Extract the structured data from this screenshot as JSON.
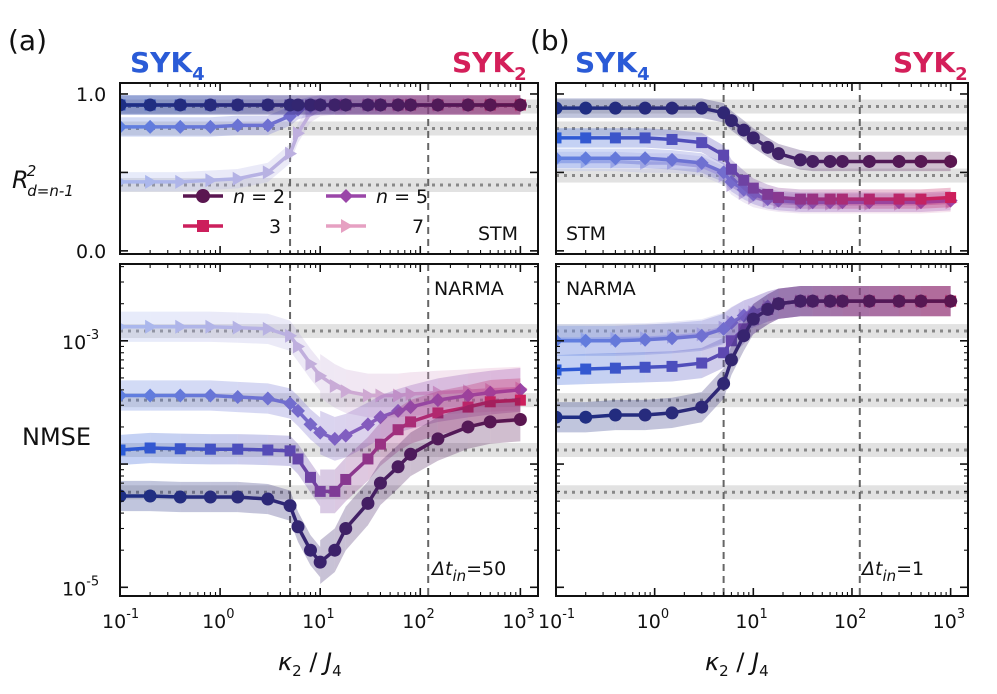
{
  "figure": {
    "panels": [
      {
        "tag": "(a)",
        "left_label": "SYK",
        "left_sub": "4",
        "right_label": "SYK",
        "right_sub": "2",
        "top_annot": "STM",
        "bottom_annot": "NARMA",
        "dt_label_pre": "Δt",
        "dt_label_sub": "in",
        "dt_label_post": "=50"
      },
      {
        "tag": "(b)",
        "left_label": "SYK",
        "left_sub": "4",
        "right_label": "SYK",
        "right_sub": "2",
        "top_annot": "STM",
        "bottom_annot": "NARMA",
        "dt_label_pre": "Δt",
        "dt_label_sub": "in",
        "dt_label_post": "=1"
      }
    ],
    "colors": {
      "syk4": "#2a5bd7",
      "syk2": "#d41f5a",
      "frame": "#111111",
      "ref_band": "#e2e2e2",
      "dotted": "#888888",
      "dashed": "#666666"
    },
    "top_ylabel": {
      "main": "R",
      "sup": "2",
      "sub": "d=n-1"
    },
    "bottom_ylabel": "NMSE",
    "xlabel": {
      "kappa": "κ",
      "kappa_sub": "2",
      "sep": " / ",
      "j": "J",
      "j_sub": "4"
    },
    "x_ticks": [
      {
        "base": "10",
        "exp": "-1"
      },
      {
        "base": "10",
        "exp": "0"
      },
      {
        "base": "10",
        "exp": "1"
      },
      {
        "base": "10",
        "exp": "2"
      },
      {
        "base": "10",
        "exp": "3"
      }
    ],
    "top_yticks": [
      "0.0",
      "0.5",
      "1.0"
    ],
    "bottom_yticks": [
      {
        "base": "10",
        "exp": "-3"
      },
      {
        "base": "10",
        "exp": "-5"
      }
    ],
    "legend": {
      "col1": [
        {
          "label": "n = 2"
        },
        {
          "label": "3"
        }
      ],
      "col2": [
        {
          "label": "n = 5"
        },
        {
          "label": "7"
        }
      ]
    }
  },
  "chart_data": [
    {
      "type": "line",
      "panel": "(a) top",
      "title": "",
      "xlabel": "κ2 / J4",
      "ylabel": "R² d=n-1",
      "xscale": "log",
      "xlim": [
        0.1,
        1500
      ],
      "ylim": [
        -0.02,
        1.07
      ],
      "x": [
        0.1,
        0.2,
        0.4,
        0.8,
        1.5,
        3,
        5,
        6,
        8,
        10,
        14,
        18,
        30,
        40,
        60,
        80,
        150,
        300,
        500,
        1000
      ],
      "vlines": [
        5,
        120
      ],
      "ref_lines": [
        0.92,
        0.78,
        0.42,
        0.92
      ],
      "series": [
        {
          "name": "n = 2",
          "marker": "circle",
          "values": [
            0.93,
            0.93,
            0.93,
            0.93,
            0.93,
            0.93,
            0.93,
            0.93,
            0.93,
            0.93,
            0.93,
            0.93,
            0.93,
            0.93,
            0.93,
            0.93,
            0.93,
            0.93,
            0.93,
            0.93
          ]
        },
        {
          "name": "3",
          "marker": "square",
          "values": [
            0.93,
            0.93,
            0.93,
            0.93,
            0.93,
            0.93,
            0.93,
            0.93,
            0.93,
            0.93,
            0.93,
            0.93,
            0.93,
            0.93,
            0.93,
            0.93,
            0.93,
            0.93,
            0.93,
            0.93
          ]
        },
        {
          "name": "n = 5",
          "marker": "diamond",
          "values": [
            0.79,
            0.79,
            0.79,
            0.79,
            0.8,
            0.8,
            0.86,
            0.9,
            0.92,
            0.93,
            0.93,
            0.93,
            0.93,
            0.93,
            0.93,
            0.93,
            0.93,
            0.93,
            0.93,
            0.93
          ]
        },
        {
          "name": "7",
          "marker": "triangle-right",
          "values": [
            0.44,
            0.44,
            0.44,
            0.45,
            0.46,
            0.5,
            0.62,
            0.75,
            0.88,
            0.92,
            0.93,
            0.93,
            0.93,
            0.93,
            0.93,
            0.93,
            0.93,
            0.93,
            0.93,
            0.93
          ]
        }
      ]
    },
    {
      "type": "line",
      "panel": "(a) bottom",
      "xlabel": "κ2 / J4",
      "ylabel": "NMSE",
      "xscale": "log",
      "yscale": "log",
      "xlim": [
        0.1,
        1500
      ],
      "ylim": [
        8.5e-06,
        0.0042
      ],
      "x": [
        0.1,
        0.2,
        0.4,
        0.8,
        1.5,
        3,
        5,
        6,
        8,
        10,
        14,
        18,
        30,
        40,
        60,
        80,
        150,
        300,
        500,
        1000
      ],
      "vlines": [
        5,
        120
      ],
      "ref_lines": [
        0.0012,
        0.00033,
        0.00013,
        5.9e-05
      ],
      "series": [
        {
          "name": "n = 2",
          "marker": "circle",
          "values": [
            5.5e-05,
            5.5e-05,
            5.4e-05,
            5.4e-05,
            5.4e-05,
            5.2e-05,
            4.6e-05,
            3.1e-05,
            2e-05,
            1.6e-05,
            2e-05,
            3e-05,
            4.8e-05,
            7e-05,
            9.5e-05,
            0.00012,
            0.00016,
            0.0002,
            0.00022,
            0.00023
          ]
        },
        {
          "name": "3",
          "marker": "square",
          "values": [
            0.00013,
            0.000135,
            0.000133,
            0.000132,
            0.000132,
            0.00013,
            0.000128,
            0.00011,
            7.8e-05,
            6e-05,
            6e-05,
            7.5e-05,
            0.00011,
            0.000145,
            0.00019,
            0.00022,
            0.00026,
            0.00029,
            0.00032,
            0.00033
          ]
        },
        {
          "name": "n = 5",
          "marker": "diamond",
          "values": [
            0.00036,
            0.00036,
            0.00036,
            0.00036,
            0.00035,
            0.00034,
            0.00031,
            0.00027,
            0.00021,
            0.00018,
            0.00016,
            0.00017,
            0.00021,
            0.00024,
            0.00027,
            0.00029,
            0.00033,
            0.00036,
            0.00038,
            0.0004
          ]
        },
        {
          "name": "7",
          "marker": "triangle-right",
          "values": [
            0.0013,
            0.0013,
            0.0013,
            0.0013,
            0.00128,
            0.00125,
            0.0011,
            0.0009,
            0.00065,
            0.00052,
            0.00043,
            0.00039,
            0.00036,
            0.00036,
            0.00036,
            0.00037,
            0.00038,
            0.00039,
            0.0004,
            0.00041
          ]
        }
      ]
    },
    {
      "type": "line",
      "panel": "(b) top",
      "xlabel": "κ2 / J4",
      "ylabel": "R² d=n-1",
      "xscale": "log",
      "xlim": [
        0.1,
        1500
      ],
      "ylim": [
        -0.02,
        1.07
      ],
      "x": [
        0.1,
        0.2,
        0.4,
        0.8,
        1.5,
        3,
        5,
        6,
        8,
        10,
        14,
        18,
        30,
        40,
        60,
        80,
        150,
        300,
        500,
        1000
      ],
      "vlines": [
        5,
        120
      ],
      "ref_lines": [
        0.92,
        0.78,
        0.48
      ],
      "series": [
        {
          "name": "n = 2",
          "marker": "circle",
          "values": [
            0.91,
            0.91,
            0.91,
            0.91,
            0.91,
            0.91,
            0.88,
            0.83,
            0.77,
            0.72,
            0.66,
            0.62,
            0.58,
            0.57,
            0.57,
            0.57,
            0.57,
            0.57,
            0.57,
            0.57
          ]
        },
        {
          "name": "3",
          "marker": "square",
          "values": [
            0.72,
            0.72,
            0.72,
            0.72,
            0.71,
            0.69,
            0.61,
            0.52,
            0.45,
            0.4,
            0.36,
            0.34,
            0.33,
            0.33,
            0.33,
            0.33,
            0.33,
            0.33,
            0.33,
            0.34
          ]
        },
        {
          "name": "n = 5",
          "marker": "diamond",
          "values": [
            0.59,
            0.59,
            0.59,
            0.59,
            0.58,
            0.56,
            0.5,
            0.44,
            0.39,
            0.36,
            0.33,
            0.32,
            0.31,
            0.31,
            0.31,
            0.31,
            0.31,
            0.31,
            0.31,
            0.32
          ]
        },
        {
          "name": "7",
          "marker": "triangle-right",
          "values": [
            0.57,
            0.57,
            0.57,
            0.56,
            0.56,
            0.54,
            0.48,
            0.42,
            0.37,
            0.34,
            0.32,
            0.31,
            0.3,
            0.3,
            0.3,
            0.3,
            0.3,
            0.3,
            0.3,
            0.31
          ]
        }
      ]
    },
    {
      "type": "line",
      "panel": "(b) bottom",
      "xlabel": "κ2 / J4",
      "ylabel": "NMSE",
      "xscale": "log",
      "yscale": "log",
      "xlim": [
        0.1,
        1500
      ],
      "ylim": [
        8.5e-06,
        0.0042
      ],
      "x": [
        0.1,
        0.2,
        0.4,
        0.8,
        1.5,
        3,
        5,
        6,
        8,
        10,
        14,
        18,
        30,
        40,
        60,
        80,
        150,
        300,
        500,
        1000
      ],
      "vlines": [
        5,
        120
      ],
      "ref_lines": [
        0.0012,
        0.00033,
        0.00013,
        5.9e-05
      ],
      "series": [
        {
          "name": "n = 2",
          "marker": "circle",
          "values": [
            0.00024,
            0.00024,
            0.00025,
            0.00025,
            0.00026,
            0.00029,
            0.00045,
            0.0007,
            0.0011,
            0.0015,
            0.0018,
            0.002,
            0.0021,
            0.0021,
            0.0021,
            0.0021,
            0.0021,
            0.0021,
            0.0021,
            0.0021
          ]
        },
        {
          "name": "3",
          "marker": "square",
          "values": [
            0.00058,
            0.00059,
            0.0006,
            0.00061,
            0.00062,
            0.00066,
            0.0008,
            0.001,
            0.00125,
            0.0015,
            0.0018,
            0.002,
            0.0021,
            0.0021,
            0.0021,
            0.0021,
            0.0021,
            0.0021,
            0.0021,
            0.0021
          ]
        },
        {
          "name": "n = 5",
          "marker": "diamond",
          "values": [
            0.001,
            0.001,
            0.001,
            0.00102,
            0.00105,
            0.0011,
            0.00125,
            0.0014,
            0.0016,
            0.0017,
            0.0019,
            0.002,
            0.0021,
            0.0021,
            0.0021,
            0.0021,
            0.0021,
            0.0021,
            0.0021,
            0.0021
          ]
        },
        {
          "name": "7",
          "marker": "triangle-right",
          "values": [
            0.00103,
            0.00103,
            0.00104,
            0.00105,
            0.00108,
            0.00113,
            0.00128,
            0.00142,
            0.0016,
            0.0017,
            0.0019,
            0.002,
            0.0021,
            0.0021,
            0.0021,
            0.0021,
            0.0021,
            0.0021,
            0.0021,
            0.0021
          ]
        }
      ]
    }
  ]
}
